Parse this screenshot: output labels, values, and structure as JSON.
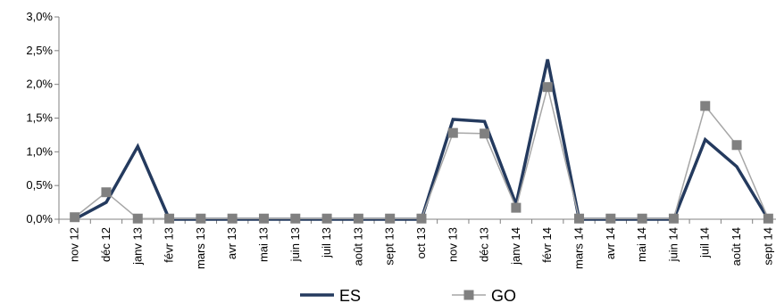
{
  "chart_data": {
    "type": "line",
    "categories": [
      "nov 12",
      "déc 12",
      "janv 13",
      "févr 13",
      "mars 13",
      "avr 13",
      "mai 13",
      "juin 13",
      "juil 13",
      "août 13",
      "sept 13",
      "oct 13",
      "nov 13",
      "déc 13",
      "janv 14",
      "févr 14",
      "mars 14",
      "avr 14",
      "mai 14",
      "juin 14",
      "juil 14",
      "août 14",
      "sept 14"
    ],
    "y_ticks": [
      "0,0%",
      "0,5%",
      "1,0%",
      "1,5%",
      "2,0%",
      "2,5%",
      "3,0%"
    ],
    "ylim": [
      0,
      3.0
    ],
    "grid": false,
    "legend_position": "bottom",
    "series": [
      {
        "name": "ES",
        "color": "#243a5e",
        "marker": "none",
        "values": [
          0.0,
          0.25,
          1.08,
          0.0,
          0.0,
          0.0,
          0.0,
          0.0,
          0.0,
          0.0,
          0.0,
          0.0,
          1.48,
          1.45,
          0.22,
          2.37,
          0.0,
          0.0,
          0.0,
          0.0,
          1.18,
          0.78,
          0.0
        ]
      },
      {
        "name": "GO",
        "color": "#a6a6a6",
        "marker": "square",
        "marker_color": "#808080",
        "values": [
          0.03,
          0.4,
          0.01,
          0.01,
          0.01,
          0.01,
          0.01,
          0.01,
          0.01,
          0.01,
          0.01,
          0.01,
          1.28,
          1.27,
          0.17,
          1.96,
          0.01,
          0.01,
          0.01,
          0.01,
          1.68,
          1.1,
          0.01
        ]
      }
    ]
  }
}
